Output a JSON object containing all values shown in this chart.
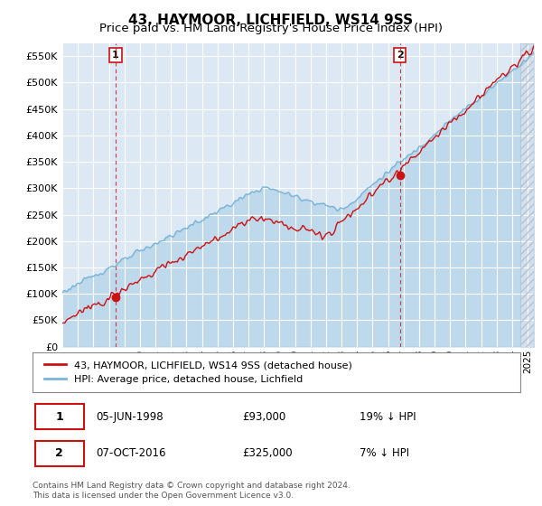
{
  "title": "43, HAYMOOR, LICHFIELD, WS14 9SS",
  "subtitle": "Price paid vs. HM Land Registry's House Price Index (HPI)",
  "ylim": [
    0,
    575000
  ],
  "yticks": [
    0,
    50000,
    100000,
    150000,
    200000,
    250000,
    300000,
    350000,
    400000,
    450000,
    500000,
    550000
  ],
  "xlim_start": 1995.0,
  "xlim_end": 2025.4,
  "sale1_date": 1998.43,
  "sale1_price": 93000,
  "sale2_date": 2016.77,
  "sale2_price": 325000,
  "hpi_color": "#7ab4d8",
  "hpi_fill_color": "#c5dff0",
  "price_color": "#cc1111",
  "plot_bg_color": "#dce9f5",
  "grid_color": "#ffffff",
  "legend_label_price": "43, HAYMOOR, LICHFIELD, WS14 9SS (detached house)",
  "legend_label_hpi": "HPI: Average price, detached house, Lichfield",
  "footer": "Contains HM Land Registry data © Crown copyright and database right 2024.\nThis data is licensed under the Open Government Licence v3.0.",
  "title_fontsize": 11,
  "subtitle_fontsize": 9.5,
  "hatch_start": 2024.5
}
